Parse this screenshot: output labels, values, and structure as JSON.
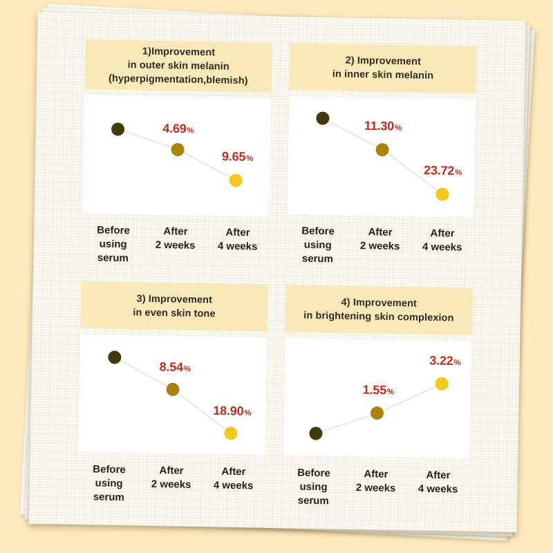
{
  "page": {
    "background_color": "#fde9bc",
    "paper_color": "#fcfbf4"
  },
  "palette": {
    "header_bg": "#f9e9b9",
    "title_color": "#2e2a22",
    "percent_label_color": "#c62a1c",
    "dot_colors": [
      "#423a0c",
      "#a9830e",
      "#f5c81d"
    ],
    "trend_line_color": "#edebe3"
  },
  "axis_labels": [
    "Before\nusing\nserum",
    "After\n2 weeks",
    "After\n4 weeks"
  ],
  "chart_data": [
    {
      "type": "line",
      "title": "1)Improvement\nin outer skin melanin\n(hyperpigmentation,blemish)",
      "categories": [
        "Before using serum",
        "After 2 weeks",
        "After 4 weeks"
      ],
      "trend": "decreasing",
      "improvements": [
        {
          "category": "After 2 weeks",
          "value": "4.69",
          "unit": "%",
          "x": 50.5,
          "y": 27
        },
        {
          "category": "After 4 weeks",
          "value": "9.65",
          "unit": "%",
          "x": 82.5,
          "y": 50
        }
      ],
      "points": [
        {
          "x": 18,
          "y": 28
        },
        {
          "x": 50.4,
          "y": 44.5
        },
        {
          "x": 82,
          "y": 70
        }
      ]
    },
    {
      "type": "line",
      "title": "2) Improvement\nin inner skin melanin",
      "categories": [
        "Before using serum",
        "After 2 weeks",
        "After 4 weeks"
      ],
      "trend": "decreasing",
      "improvements": [
        {
          "category": "After 2 weeks",
          "value": "11.30",
          "unit": "%",
          "x": 50.5,
          "y": 24
        },
        {
          "category": "After 4 weeks",
          "value": "23.72",
          "unit": "%",
          "x": 83,
          "y": 61
        }
      ],
      "points": [
        {
          "x": 18,
          "y": 18
        },
        {
          "x": 50.4,
          "y": 44
        },
        {
          "x": 83,
          "y": 81
        }
      ]
    },
    {
      "type": "line",
      "title": "3) Improvement\nin even skin tone",
      "categories": [
        "Before using serum",
        "After 2 weeks",
        "After 4 weeks"
      ],
      "trend": "decreasing",
      "improvements": [
        {
          "category": "After 2 weeks",
          "value": "8.54",
          "unit": "%",
          "x": 51,
          "y": 26.5
        },
        {
          "category": "After 4 weeks",
          "value": "18.90",
          "unit": "%",
          "x": 82,
          "y": 63
        }
      ],
      "points": [
        {
          "x": 18.5,
          "y": 19
        },
        {
          "x": 50,
          "y": 45
        },
        {
          "x": 81.5,
          "y": 82
        }
      ]
    },
    {
      "type": "line",
      "title": "4) Improvement\nin brightening skin complexion",
      "categories": [
        "Before using serum",
        "After 2 weeks",
        "After 4 weeks"
      ],
      "trend": "increasing",
      "improvements": [
        {
          "category": "After 2 weeks",
          "value": "1.55",
          "unit": "%",
          "x": 50.5,
          "y": 43
        },
        {
          "category": "After 4 weeks",
          "value": "3.22",
          "unit": "%",
          "x": 86,
          "y": 17
        }
      ],
      "points": [
        {
          "x": 17.5,
          "y": 80.5
        },
        {
          "x": 50,
          "y": 62.5
        },
        {
          "x": 84.5,
          "y": 36.5
        }
      ]
    }
  ]
}
